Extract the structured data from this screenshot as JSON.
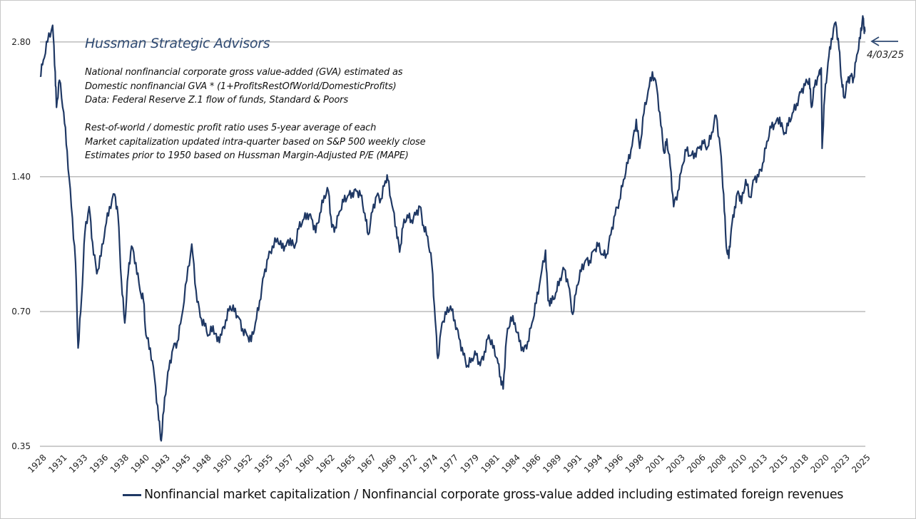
{
  "chart_data": {
    "type": "line",
    "title": "Hussman Strategic Advisors",
    "notes": [
      "National nonfinancial corporate gross value-added (GVA) estimated as",
      "Domestic nonfinancial GVA * (1+ProfitsRestOfWorld/DomesticProfits)",
      "Data: Federal Reserve Z.1 flow of funds, Standard & Poors",
      "",
      "Rest-of-world / domestic profit ratio uses 5-year average of each",
      "Market capitalization updated intra-quarter based on S&P 500 weekly close",
      "Estimates prior to 1950 based on Hussman Margin-Adjusted P/E (MAPE)"
    ],
    "y_scale": "log",
    "ylim": [
      0.35,
      3.3
    ],
    "xlim": [
      1928.0,
      2025.3
    ],
    "grid": true,
    "ytick_labels": [
      "0.35",
      "0.70",
      "1.40",
      "2.80"
    ],
    "ytick_values": [
      0.35,
      0.7,
      1.4,
      2.8
    ],
    "xtick_labels": [
      "1928",
      "1931",
      "1933",
      "1936",
      "1938",
      "1940",
      "1943",
      "1945",
      "1948",
      "1950",
      "1952",
      "1955",
      "1957",
      "1960",
      "1962",
      "1965",
      "1967",
      "1969",
      "1972",
      "1974",
      "1977",
      "1979",
      "1981",
      "1984",
      "1986",
      "1989",
      "1991",
      "1994",
      "1996",
      "1998",
      "2001",
      "2003",
      "2006",
      "2008",
      "2010",
      "2013",
      "2015",
      "2018",
      "2020",
      "2023",
      "2025"
    ],
    "legend_position": "bottom",
    "annotation": {
      "label": "4/03/25",
      "x": 2025.25,
      "y": 3.0
    },
    "series": [
      {
        "name": "Nonfinancial market capitalization / Nonfinancial corporate gross-value added including estimated foreign revenues",
        "color": "#1f3864",
        "points": [
          [
            1928.0,
            2.35
          ],
          [
            1928.4,
            2.55
          ],
          [
            1928.9,
            2.8
          ],
          [
            1929.5,
            3.05
          ],
          [
            1929.8,
            2.4
          ],
          [
            1929.95,
            2.0
          ],
          [
            1930.3,
            2.3
          ],
          [
            1930.8,
            1.95
          ],
          [
            1931.2,
            1.6
          ],
          [
            1931.7,
            1.2
          ],
          [
            1932.2,
            0.9
          ],
          [
            1932.5,
            0.58
          ],
          [
            1932.9,
            0.75
          ],
          [
            1933.3,
            1.05
          ],
          [
            1933.8,
            1.2
          ],
          [
            1934.2,
            1.0
          ],
          [
            1934.7,
            0.85
          ],
          [
            1935.2,
            0.93
          ],
          [
            1935.7,
            1.08
          ],
          [
            1936.2,
            1.2
          ],
          [
            1936.8,
            1.28
          ],
          [
            1937.2,
            1.15
          ],
          [
            1937.6,
            0.82
          ],
          [
            1938.0,
            0.66
          ],
          [
            1938.4,
            0.85
          ],
          [
            1938.8,
            0.98
          ],
          [
            1939.3,
            0.9
          ],
          [
            1939.8,
            0.78
          ],
          [
            1940.2,
            0.74
          ],
          [
            1940.5,
            0.62
          ],
          [
            1941.0,
            0.58
          ],
          [
            1941.5,
            0.5
          ],
          [
            1942.0,
            0.4
          ],
          [
            1942.3,
            0.36
          ],
          [
            1942.7,
            0.45
          ],
          [
            1943.2,
            0.52
          ],
          [
            1943.7,
            0.58
          ],
          [
            1944.2,
            0.6
          ],
          [
            1944.7,
            0.68
          ],
          [
            1945.3,
            0.82
          ],
          [
            1945.9,
            0.99
          ],
          [
            1946.4,
            0.78
          ],
          [
            1946.9,
            0.68
          ],
          [
            1947.4,
            0.65
          ],
          [
            1947.9,
            0.62
          ],
          [
            1948.4,
            0.65
          ],
          [
            1948.9,
            0.6
          ],
          [
            1949.4,
            0.62
          ],
          [
            1949.9,
            0.67
          ],
          [
            1950.4,
            0.72
          ],
          [
            1950.9,
            0.7
          ],
          [
            1951.4,
            0.68
          ],
          [
            1951.9,
            0.64
          ],
          [
            1952.4,
            0.62
          ],
          [
            1952.9,
            0.6
          ],
          [
            1953.4,
            0.66
          ],
          [
            1953.9,
            0.74
          ],
          [
            1954.4,
            0.84
          ],
          [
            1954.9,
            0.92
          ],
          [
            1955.4,
            0.98
          ],
          [
            1956.0,
            1.02
          ],
          [
            1956.5,
            0.97
          ],
          [
            1957.0,
            0.98
          ],
          [
            1957.5,
            1.02
          ],
          [
            1958.0,
            0.97
          ],
          [
            1958.5,
            1.07
          ],
          [
            1959.0,
            1.12
          ],
          [
            1959.5,
            1.16
          ],
          [
            1960.0,
            1.13
          ],
          [
            1960.5,
            1.05
          ],
          [
            1961.0,
            1.16
          ],
          [
            1961.5,
            1.27
          ],
          [
            1962.0,
            1.3
          ],
          [
            1962.4,
            1.08
          ],
          [
            1962.8,
            1.08
          ],
          [
            1963.3,
            1.17
          ],
          [
            1963.8,
            1.23
          ],
          [
            1964.3,
            1.27
          ],
          [
            1964.8,
            1.29
          ],
          [
            1965.3,
            1.3
          ],
          [
            1965.8,
            1.27
          ],
          [
            1966.3,
            1.16
          ],
          [
            1966.7,
            1.04
          ],
          [
            1967.2,
            1.17
          ],
          [
            1967.7,
            1.27
          ],
          [
            1968.2,
            1.25
          ],
          [
            1968.7,
            1.37
          ],
          [
            1969.0,
            1.38
          ],
          [
            1969.5,
            1.21
          ],
          [
            1970.0,
            1.08
          ],
          [
            1970.4,
            0.95
          ],
          [
            1970.8,
            1.08
          ],
          [
            1971.3,
            1.15
          ],
          [
            1971.8,
            1.12
          ],
          [
            1972.3,
            1.15
          ],
          [
            1972.8,
            1.2
          ],
          [
            1973.2,
            1.09
          ],
          [
            1973.7,
            1.03
          ],
          [
            1974.2,
            0.89
          ],
          [
            1974.6,
            0.67
          ],
          [
            1974.9,
            0.55
          ],
          [
            1975.4,
            0.66
          ],
          [
            1975.9,
            0.69
          ],
          [
            1976.4,
            0.72
          ],
          [
            1976.9,
            0.67
          ],
          [
            1977.4,
            0.61
          ],
          [
            1977.9,
            0.56
          ],
          [
            1978.4,
            0.53
          ],
          [
            1978.9,
            0.55
          ],
          [
            1979.4,
            0.56
          ],
          [
            1979.9,
            0.53
          ],
          [
            1980.4,
            0.57
          ],
          [
            1980.9,
            0.62
          ],
          [
            1981.4,
            0.58
          ],
          [
            1981.9,
            0.55
          ],
          [
            1982.3,
            0.5
          ],
          [
            1982.6,
            0.47
          ],
          [
            1983.0,
            0.61
          ],
          [
            1983.5,
            0.68
          ],
          [
            1984.0,
            0.66
          ],
          [
            1984.5,
            0.6
          ],
          [
            1985.0,
            0.57
          ],
          [
            1985.5,
            0.6
          ],
          [
            1986.0,
            0.66
          ],
          [
            1986.5,
            0.73
          ],
          [
            1987.0,
            0.83
          ],
          [
            1987.6,
            0.96
          ],
          [
            1987.9,
            0.74
          ],
          [
            1988.3,
            0.73
          ],
          [
            1988.8,
            0.77
          ],
          [
            1989.3,
            0.83
          ],
          [
            1989.8,
            0.87
          ],
          [
            1990.3,
            0.8
          ],
          [
            1990.8,
            0.69
          ],
          [
            1991.3,
            0.8
          ],
          [
            1991.8,
            0.86
          ],
          [
            1992.3,
            0.91
          ],
          [
            1992.8,
            0.91
          ],
          [
            1993.3,
            0.96
          ],
          [
            1993.8,
            0.98
          ],
          [
            1994.3,
            0.94
          ],
          [
            1994.8,
            0.94
          ],
          [
            1995.3,
            1.04
          ],
          [
            1995.8,
            1.15
          ],
          [
            1996.3,
            1.24
          ],
          [
            1996.8,
            1.38
          ],
          [
            1997.3,
            1.5
          ],
          [
            1997.8,
            1.64
          ],
          [
            1998.3,
            1.88
          ],
          [
            1998.7,
            1.62
          ],
          [
            1999.2,
            1.94
          ],
          [
            1999.7,
            2.18
          ],
          [
            2000.2,
            2.4
          ],
          [
            2000.7,
            2.22
          ],
          [
            2001.2,
            1.82
          ],
          [
            2001.6,
            1.58
          ],
          [
            2001.9,
            1.7
          ],
          [
            2002.3,
            1.48
          ],
          [
            2002.7,
            1.2
          ],
          [
            2003.2,
            1.3
          ],
          [
            2003.7,
            1.48
          ],
          [
            2004.2,
            1.6
          ],
          [
            2004.7,
            1.56
          ],
          [
            2005.2,
            1.58
          ],
          [
            2005.7,
            1.62
          ],
          [
            2006.2,
            1.66
          ],
          [
            2006.7,
            1.63
          ],
          [
            2007.2,
            1.76
          ],
          [
            2007.7,
            1.92
          ],
          [
            2008.2,
            1.62
          ],
          [
            2008.6,
            1.28
          ],
          [
            2008.9,
            0.98
          ],
          [
            2009.2,
            0.92
          ],
          [
            2009.5,
            1.07
          ],
          [
            2009.9,
            1.2
          ],
          [
            2010.3,
            1.3
          ],
          [
            2010.7,
            1.22
          ],
          [
            2011.2,
            1.38
          ],
          [
            2011.7,
            1.26
          ],
          [
            2012.2,
            1.38
          ],
          [
            2012.7,
            1.4
          ],
          [
            2013.2,
            1.5
          ],
          [
            2013.7,
            1.68
          ],
          [
            2014.2,
            1.8
          ],
          [
            2014.7,
            1.84
          ],
          [
            2015.2,
            1.9
          ],
          [
            2015.7,
            1.74
          ],
          [
            2016.2,
            1.82
          ],
          [
            2016.7,
            1.94
          ],
          [
            2017.2,
            2.04
          ],
          [
            2017.7,
            2.16
          ],
          [
            2018.2,
            2.24
          ],
          [
            2018.7,
            2.32
          ],
          [
            2018.95,
            2.0
          ],
          [
            2019.3,
            2.22
          ],
          [
            2019.8,
            2.36
          ],
          [
            2020.1,
            2.45
          ],
          [
            2020.2,
            1.62
          ],
          [
            2020.5,
            2.1
          ],
          [
            2020.9,
            2.52
          ],
          [
            2021.3,
            2.85
          ],
          [
            2021.8,
            3.1
          ],
          [
            2022.2,
            2.7
          ],
          [
            2022.5,
            2.3
          ],
          [
            2022.8,
            2.1
          ],
          [
            2023.2,
            2.28
          ],
          [
            2023.6,
            2.35
          ],
          [
            2023.9,
            2.32
          ],
          [
            2024.3,
            2.62
          ],
          [
            2024.7,
            2.85
          ],
          [
            2025.0,
            3.2
          ],
          [
            2025.15,
            3.02
          ],
          [
            2025.25,
            2.95
          ]
        ]
      }
    ]
  }
}
